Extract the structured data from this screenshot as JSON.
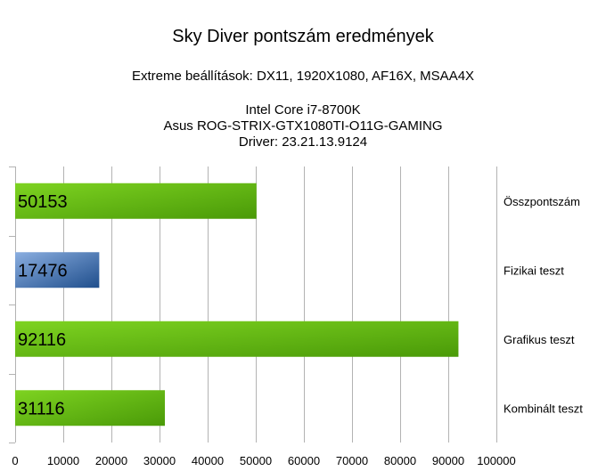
{
  "chart_data": {
    "type": "bar",
    "orientation": "horizontal",
    "title": "Sky Diver pontszám eredmények",
    "subtitles": [
      "Extreme beállítások: DX11, 1920X1080, AF16X, MSAA4X",
      "Intel Core i7-8700K",
      "Asus ROG-STRIX-GTX1080TI-O11G-GAMING",
      "Driver: 23.21.13.9124"
    ],
    "categories": [
      "Összpontszám",
      "Fizikai teszt",
      "Grafikus teszt",
      "Kombinált teszt"
    ],
    "values": [
      50153,
      17476,
      92116,
      31116
    ],
    "value_labels": [
      "50153",
      "17476",
      "92116",
      "31116"
    ],
    "bar_colors": [
      "green",
      "blue",
      "green",
      "green"
    ],
    "xlim": [
      0,
      100000
    ],
    "xticks": [
      0,
      10000,
      20000,
      30000,
      40000,
      50000,
      60000,
      70000,
      80000,
      90000,
      100000
    ],
    "xtick_labels": [
      "0",
      "10000",
      "20000",
      "30000",
      "40000",
      "50000",
      "60000",
      "70000",
      "80000",
      "90000",
      "100000"
    ],
    "grid": "vertical",
    "xlabel": "",
    "ylabel": ""
  },
  "colors": {
    "green_light": "#7ed321",
    "green_dark": "#4a9a08",
    "blue_light": "#8aaee0",
    "blue_dark": "#1f4e8c",
    "grid": "#b3b3b3"
  }
}
